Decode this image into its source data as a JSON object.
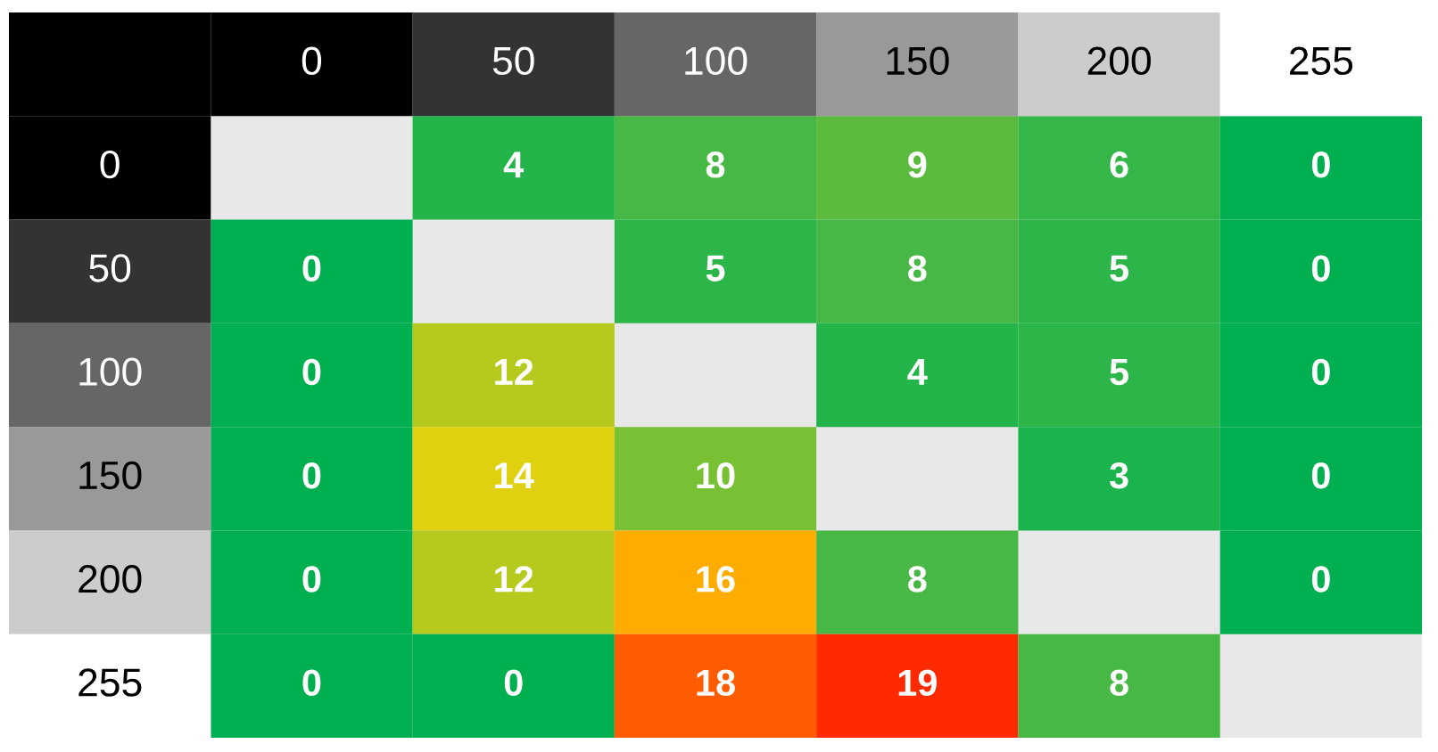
{
  "chart_data": {
    "type": "heatmap",
    "categories": [
      "0",
      "50",
      "100",
      "150",
      "200",
      "255"
    ],
    "y_categories": [
      "0",
      "50",
      "100",
      "150",
      "200",
      "255"
    ],
    "cells": [
      [
        null,
        4,
        8,
        9,
        6,
        0
      ],
      [
        0,
        null,
        5,
        8,
        5,
        0
      ],
      [
        0,
        12,
        null,
        4,
        5,
        0
      ],
      [
        0,
        14,
        10,
        null,
        3,
        0
      ],
      [
        0,
        12,
        16,
        8,
        null,
        0
      ],
      [
        0,
        0,
        18,
        19,
        8,
        null
      ]
    ],
    "data_labels": true
  }
}
